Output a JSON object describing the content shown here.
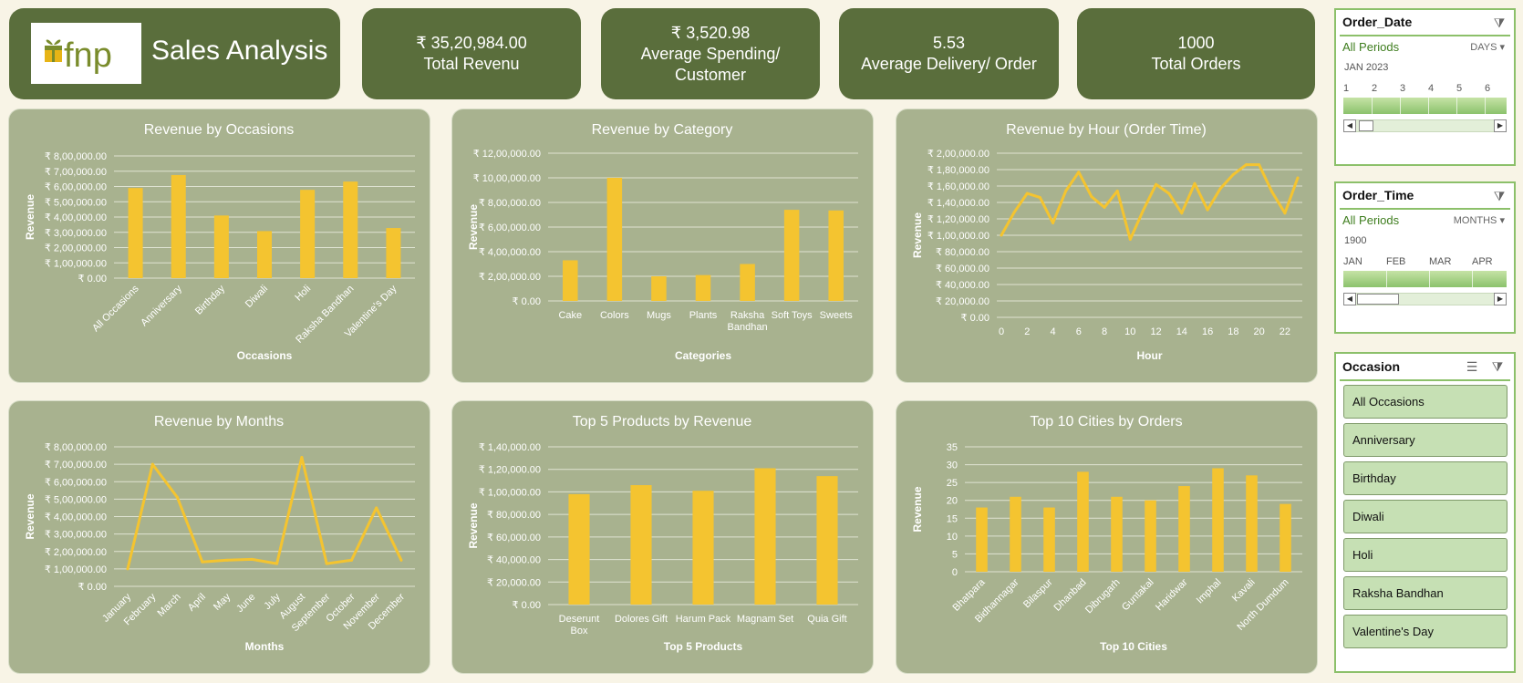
{
  "brand": {
    "logo_text": "fnp",
    "title": "Sales Analysis"
  },
  "kpis": [
    {
      "value": "₹ 35,20,984.00",
      "label": "Total Revenu"
    },
    {
      "value": "₹ 3,520.98",
      "label": "Average Spending/ Customer"
    },
    {
      "value": "5.53",
      "label": "Average Delivery/ Order"
    },
    {
      "value": "1000",
      "label": "Total Orders"
    }
  ],
  "colors": {
    "panel": "#a8b28f",
    "dark_green": "#5a6e3c",
    "bar": "#f4c430",
    "background": "#f8f4e6"
  },
  "chart_data": [
    {
      "id": "occasions",
      "type": "bar",
      "title": "Revenue by Occasions",
      "xlabel": "Occasions",
      "ylabel": "Revenue",
      "categories": [
        "All Occasions",
        "Anniversary",
        "Birthday",
        "Diwali",
        "Holi",
        "Raksha Bandhan",
        "Valentine's Day"
      ],
      "values": [
        590000,
        675000,
        410000,
        308000,
        578000,
        632000,
        328000
      ],
      "ylim": [
        0,
        800000
      ],
      "yticks": [
        "₹ 0.00",
        "₹ 1,00,000.00",
        "₹ 2,00,000.00",
        "₹ 3,00,000.00",
        "₹ 4,00,000.00",
        "₹ 5,00,000.00",
        "₹ 6,00,000.00",
        "₹ 7,00,000.00",
        "₹ 8,00,000.00"
      ],
      "rotate": true,
      "grid": true
    },
    {
      "id": "category",
      "type": "bar",
      "title": "Revenue by Category",
      "xlabel": "Categories",
      "ylabel": "Revenue",
      "categories": [
        "Cake",
        "Colors",
        "Mugs",
        "Plants",
        "Raksha Bandhan",
        "Soft Toys",
        "Sweets"
      ],
      "display_categories": [
        [
          "Cake"
        ],
        [
          "Colors"
        ],
        [
          "Mugs"
        ],
        [
          "Plants"
        ],
        [
          "Raksha",
          "Bandhan"
        ],
        [
          "Soft Toys"
        ],
        [
          "Sweets"
        ]
      ],
      "values": [
        330000,
        1000000,
        200000,
        210000,
        300000,
        740000,
        735000
      ],
      "ylim": [
        0,
        1200000
      ],
      "yticks": [
        "₹ 0.00",
        "₹ 2,00,000.00",
        "₹ 4,00,000.00",
        "₹ 6,00,000.00",
        "₹ 8,00,000.00",
        "₹ 10,00,000.00",
        "₹ 12,00,000.00"
      ],
      "rotate": false,
      "grid": true
    },
    {
      "id": "hour",
      "type": "line",
      "title": "Revenue by Hour (Order Time)",
      "xlabel": "Hour",
      "ylabel": "Revenue",
      "x": [
        0,
        1,
        2,
        3,
        4,
        5,
        6,
        7,
        8,
        9,
        10,
        11,
        12,
        13,
        14,
        15,
        16,
        17,
        18,
        19,
        20,
        21,
        22,
        23
      ],
      "values": [
        100000,
        128000,
        151000,
        146000,
        115000,
        154000,
        177000,
        147000,
        134000,
        154000,
        95000,
        130000,
        162000,
        151000,
        127000,
        163000,
        131000,
        157000,
        174000,
        186000,
        186000,
        153000,
        127000,
        170000
      ],
      "xticks": [
        "0",
        "2",
        "4",
        "6",
        "8",
        "10",
        "12",
        "14",
        "16",
        "18",
        "20",
        "22"
      ],
      "ylim": [
        0,
        200000
      ],
      "yticks": [
        "₹ 0.00",
        "₹ 20,000.00",
        "₹ 40,000.00",
        "₹ 60,000.00",
        "₹ 80,000.00",
        "₹ 1,00,000.00",
        "₹ 1,20,000.00",
        "₹ 1,40,000.00",
        "₹ 1,60,000.00",
        "₹ 1,80,000.00",
        "₹ 2,00,000.00"
      ],
      "grid": true
    },
    {
      "id": "months",
      "type": "line",
      "title": "Revenue by Months",
      "xlabel": "Months",
      "ylabel": "Revenue",
      "categories": [
        "January",
        "February",
        "March",
        "April",
        "May",
        "June",
        "July",
        "August",
        "September",
        "October",
        "November",
        "December"
      ],
      "values": [
        100000,
        700000,
        510000,
        140000,
        150000,
        155000,
        130000,
        740000,
        130000,
        150000,
        450000,
        150000
      ],
      "ylim": [
        0,
        800000
      ],
      "yticks": [
        "₹ 0.00",
        "₹ 1,00,000.00",
        "₹ 2,00,000.00",
        "₹ 3,00,000.00",
        "₹ 4,00,000.00",
        "₹ 5,00,000.00",
        "₹ 6,00,000.00",
        "₹ 7,00,000.00",
        "₹ 8,00,000.00"
      ],
      "rotate": true,
      "grid": true
    },
    {
      "id": "products",
      "type": "bar",
      "title": "Top 5 Products by Revenue",
      "xlabel": "Top 5 Products",
      "ylabel": "Revenue",
      "categories": [
        "Deserunt Box",
        "Dolores Gift",
        "Harum Pack",
        "Magnam Set",
        "Quia Gift"
      ],
      "display_categories": [
        [
          "Deserunt",
          "Box"
        ],
        [
          "Dolores Gift"
        ],
        [
          "Harum Pack"
        ],
        [
          "Magnam Set"
        ],
        [
          "Quia Gift"
        ]
      ],
      "values": [
        98000,
        106000,
        101000,
        121000,
        114000
      ],
      "ylim": [
        0,
        140000
      ],
      "yticks": [
        "₹ 0.00",
        "₹ 20,000.00",
        "₹ 40,000.00",
        "₹ 60,000.00",
        "₹ 80,000.00",
        "₹ 1,00,000.00",
        "₹ 1,20,000.00",
        "₹ 1,40,000.00"
      ],
      "rotate": false,
      "grid": true
    },
    {
      "id": "cities",
      "type": "bar",
      "title": "Top 10 Cities by Orders",
      "xlabel": "Top 10 Cities",
      "ylabel": "Revenue",
      "categories": [
        "Bhatpara",
        "Bidhannagar",
        "Bilaspur",
        "Dhanbad",
        "Dibrugarh",
        "Guntakal",
        "Haridwar",
        "Imphal",
        "Kavali",
        "North Dumdum"
      ],
      "values": [
        18,
        21,
        18,
        28,
        21,
        20,
        24,
        29,
        27,
        19
      ],
      "ylim": [
        0,
        35
      ],
      "yticks": [
        "0",
        "5",
        "10",
        "15",
        "20",
        "25",
        "30",
        "35"
      ],
      "rotate": true,
      "grid": true
    }
  ],
  "slicers": {
    "order_date": {
      "title": "Order_Date",
      "all": "All Periods",
      "level": "DAYS",
      "period": "JAN 2023",
      "ticks": [
        "1",
        "2",
        "3",
        "4",
        "5",
        "6"
      ]
    },
    "order_time": {
      "title": "Order_Time",
      "all": "All Periods",
      "level": "MONTHS",
      "period": "1900",
      "ticks": [
        "JAN",
        "FEB",
        "MAR",
        "APR"
      ]
    },
    "occasion": {
      "title": "Occasion",
      "items": [
        "All Occasions",
        "Anniversary",
        "Birthday",
        "Diwali",
        "Holi",
        "Raksha Bandhan",
        "Valentine's Day"
      ]
    }
  }
}
